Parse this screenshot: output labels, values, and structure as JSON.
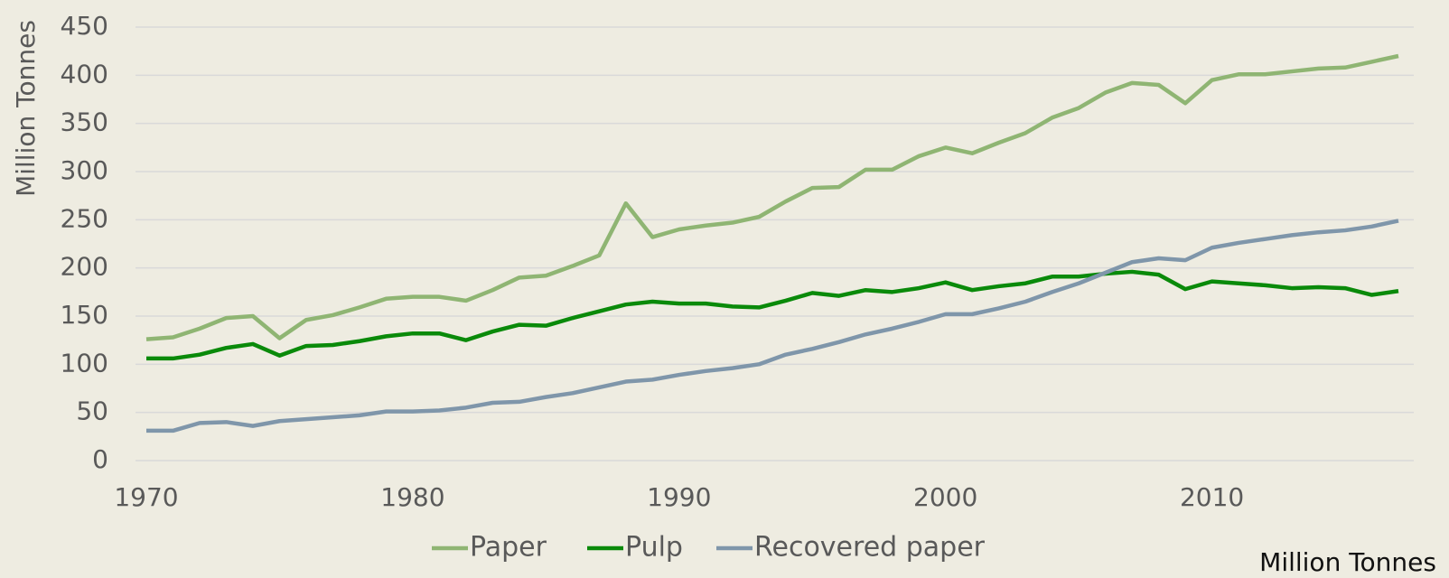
{
  "chart_data": {
    "type": "line",
    "y_label": "Million Tonnes",
    "annotation": "Million Tonnes",
    "x": [
      1970,
      1971,
      1972,
      1973,
      1974,
      1975,
      1976,
      1977,
      1978,
      1979,
      1980,
      1981,
      1982,
      1983,
      1984,
      1985,
      1986,
      1987,
      1988,
      1989,
      1990,
      1991,
      1992,
      1993,
      1994,
      1995,
      1996,
      1997,
      1998,
      1999,
      2000,
      2001,
      2002,
      2003,
      2004,
      2005,
      2006,
      2007,
      2008,
      2009,
      2010,
      2011,
      2012,
      2013,
      2014,
      2015,
      2016,
      2017
    ],
    "series": [
      {
        "name": "Paper",
        "color": "#8fb573",
        "values": [
          126,
          128,
          137,
          148,
          150,
          127,
          146,
          151,
          159,
          168,
          170,
          170,
          166,
          177,
          190,
          192,
          202,
          213,
          267,
          232,
          240,
          244,
          247,
          253,
          269,
          283,
          284,
          302,
          302,
          316,
          325,
          319,
          330,
          340,
          356,
          366,
          382,
          392,
          390,
          371,
          395,
          401,
          401,
          404,
          407,
          408,
          414,
          420
        ]
      },
      {
        "name": "Pulp",
        "color": "#0a8a0a",
        "values": [
          106,
          106,
          110,
          117,
          121,
          109,
          119,
          120,
          124,
          129,
          132,
          132,
          125,
          134,
          141,
          140,
          148,
          155,
          162,
          165,
          163,
          163,
          160,
          159,
          166,
          174,
          171,
          177,
          175,
          179,
          185,
          177,
          181,
          184,
          191,
          191,
          194,
          196,
          193,
          178,
          186,
          184,
          182,
          179,
          180,
          179,
          172,
          176
        ]
      },
      {
        "name": "Recovered paper",
        "color": "#7f96aa",
        "values": [
          31,
          31,
          39,
          40,
          36,
          41,
          43,
          45,
          47,
          51,
          51,
          52,
          55,
          60,
          61,
          66,
          70,
          76,
          82,
          84,
          89,
          93,
          96,
          100,
          110,
          116,
          123,
          131,
          137,
          144,
          152,
          152,
          158,
          165,
          175,
          184,
          195,
          206,
          210,
          208,
          221,
          226,
          230,
          234,
          237,
          239,
          243,
          249
        ]
      }
    ],
    "xlim": [
      1970,
      2017
    ],
    "xticks": [
      1970,
      1980,
      1990,
      2000,
      2010
    ],
    "ylim": [
      0,
      450
    ],
    "yticks": [
      0,
      50,
      100,
      150,
      200,
      250,
      300,
      350,
      400,
      450
    ],
    "grid": true,
    "legend": "bottom"
  }
}
